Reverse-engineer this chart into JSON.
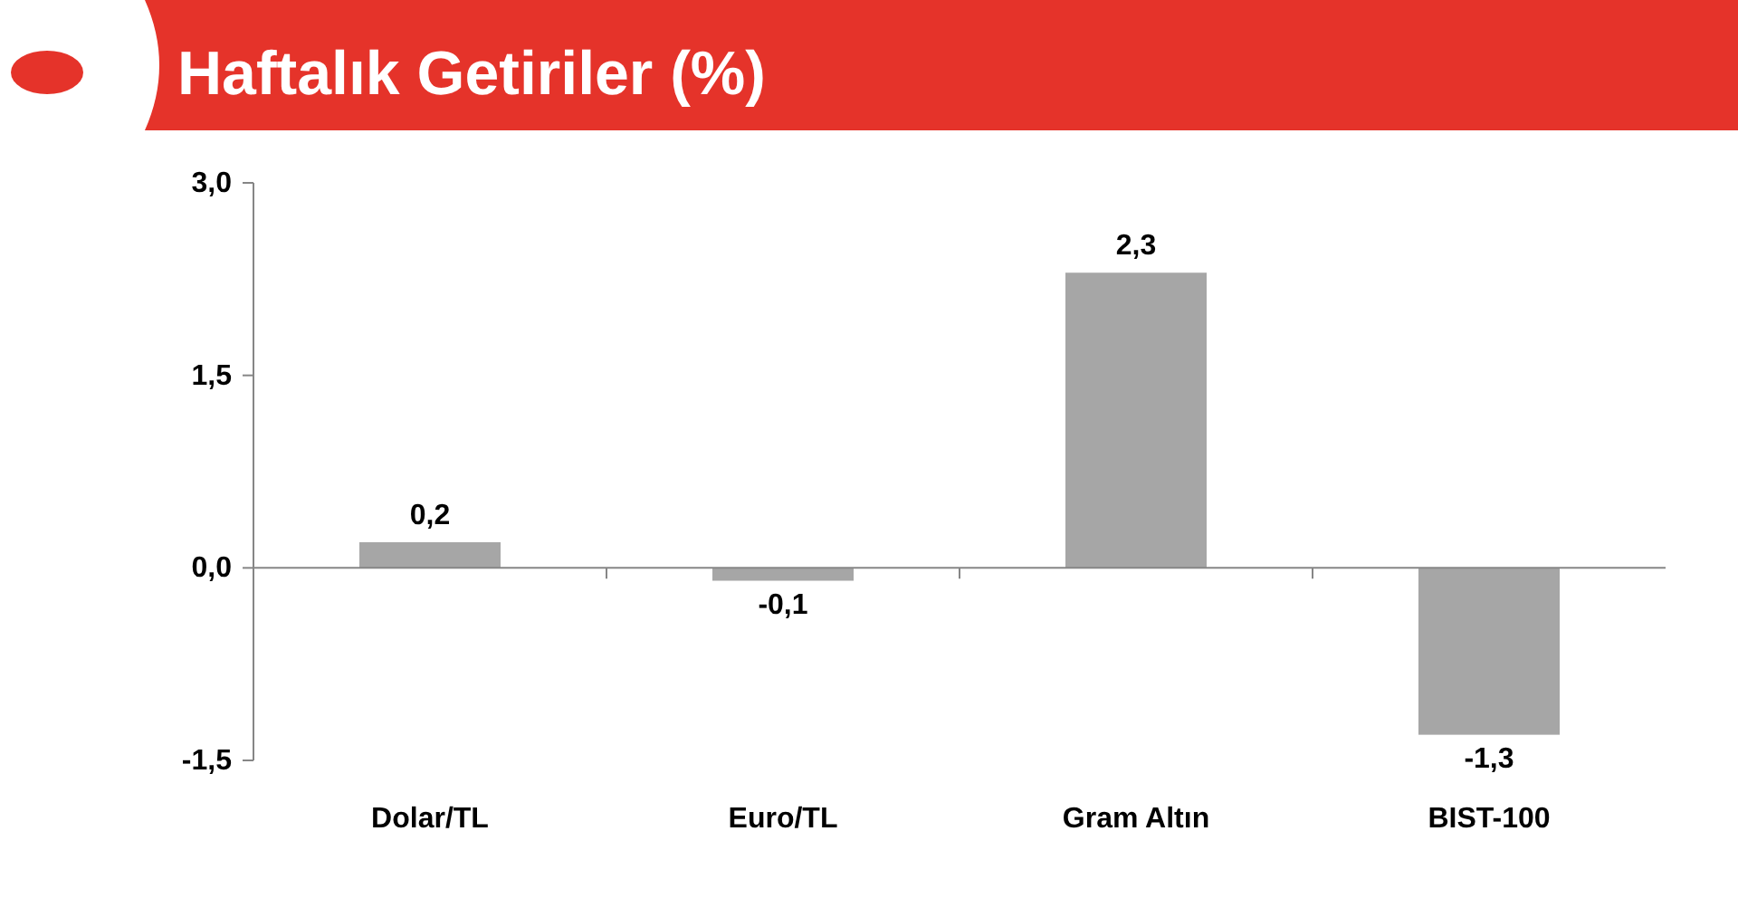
{
  "chart_data": {
    "type": "bar",
    "title": "Haftalık Getiriler (%)",
    "categories": [
      "Dolar/TL",
      "Euro/TL",
      "Gram Altın",
      "BIST-100"
    ],
    "values": [
      0.2,
      -0.1,
      2.3,
      -1.3
    ],
    "value_labels": [
      "0,2",
      "-0,1",
      "2,3",
      "-1,3"
    ],
    "color": "#a6a6a6",
    "ylim": [
      -1.5,
      3
    ],
    "yticks": [
      {
        "value": -1.5,
        "label": "-1,5"
      },
      {
        "value": 0,
        "label": "0,0"
      },
      {
        "value": 1.5,
        "label": "1,5"
      },
      {
        "value": 3,
        "label": "3,0"
      }
    ]
  }
}
